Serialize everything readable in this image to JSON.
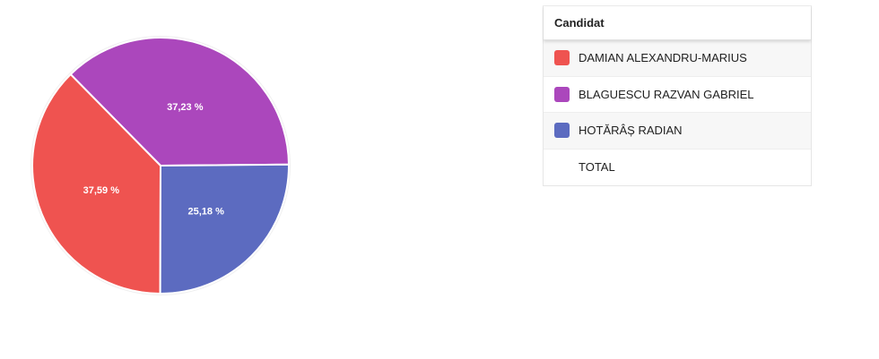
{
  "chart_data": {
    "type": "pie",
    "series": [
      {
        "name": "DAMIAN ALEXANDRU-MARIUS",
        "value": 37.59,
        "label": "37,59 %",
        "color": "#ef5350"
      },
      {
        "name": "BLAGUESCU RAZVAN GABRIEL",
        "value": 37.23,
        "label": "37,23 %",
        "color": "#ab47bc"
      },
      {
        "name": "HOTĂRÂȘ RADIAN",
        "value": 25.18,
        "label": "25,18 %",
        "color": "#5c6bc0"
      }
    ]
  },
  "legend": {
    "header": "Candidat",
    "rows": [
      {
        "label": "DAMIAN ALEXANDRU-MARIUS",
        "color": "#ef5350"
      },
      {
        "label": "BLAGUESCU RAZVAN GABRIEL",
        "color": "#ab47bc"
      },
      {
        "label": "HOTĂRÂȘ RADIAN",
        "color": "#5c6bc0"
      },
      {
        "label": "TOTAL",
        "color": ""
      }
    ]
  }
}
